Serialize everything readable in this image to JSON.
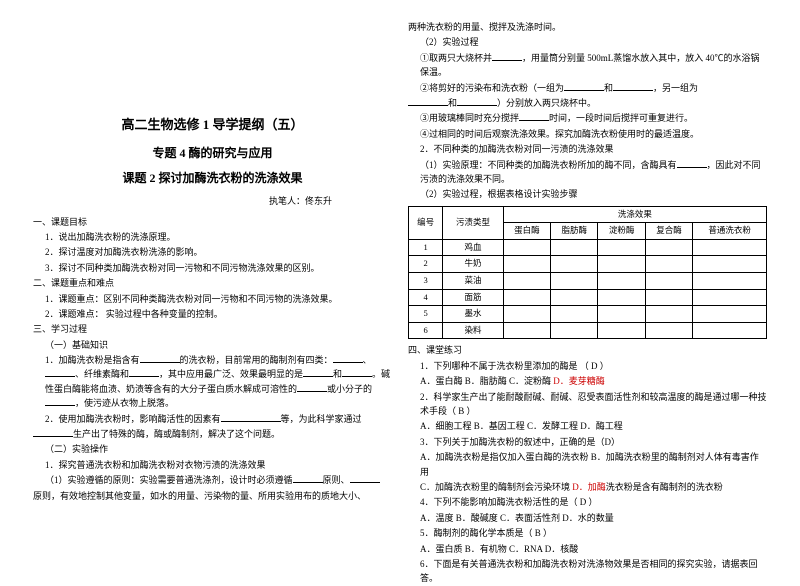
{
  "left": {
    "title_main": "高二生物选修 1 导学提纲（五）",
    "title_sub": "专题 4 酶的研究与应用",
    "title_lesson": "课题 2 探讨加酶洗衣粉的洗涤效果",
    "author": "执笔人：佟东升",
    "s1_head": "一、课题目标",
    "s1_1": "1．说出加酶洗衣粉的洗涤原理。",
    "s1_2": "2．探讨温度对加酶洗衣粉洗涤的影响。",
    "s1_3": "3．探讨不同种类加酶洗衣粉对同一污物和不同污物洗涤效果的区别。",
    "s2_head": "二、课题重点和难点",
    "s2_1": "1．课题重点：区别不同种类酶洗衣粉对同一污物和不同污物的洗涤效果。",
    "s2_2": "2．课题难点：  实验过程中各种变量的控制。",
    "s3_head": "三、学习过程",
    "s3_1": "（一）基础知识",
    "s3_1_1a": "1．加酶洗衣粉是指含有",
    "s3_1_1b": "的洗衣粉，目前常用的酶制剂有四类：",
    "s3_1_1c": "、",
    "s3_1_1d": "、纤维素酶和",
    "s3_1_1e": "，其中应用最广泛、效果最明显的是",
    "s3_1_1f": "和",
    "s3_1_1g": "。碱性蛋白酶能将",
    "s3_1_1h": "血渍、奶渍等含有的大分子蛋白质水解成可溶性的",
    "s3_1_1i": "或小分子的",
    "s3_1_1j": "，使污迹从衣物上脱落。",
    "s3_1_2a": "2．使用加酶洗衣粉时，影响酶活性的因素有",
    "s3_1_2b": "等，为此科学家通过",
    "s3_1_2c": "生产出了特殊的酶，酶或酶制剂，解决了这个问题。",
    "s3_2": "（二）实验操作",
    "s3_2_1": "1．探究普通洗衣粉和加酶洗衣粉对衣物污渍的洗涤效果",
    "s3_2_1a": "（1）实验遵循的原则：实验需要普通洗涤剂，设计时必须遵循",
    "s3_2_1b": "原则、",
    "s3_2_1c": "原则，有效地控制其他变量，如水的用量、污染物的量、所用实验用布的质地大小、"
  },
  "right": {
    "r1": "两种洗衣粉的用量、搅拌及洗涤时间。",
    "r2": "（2）实验过程",
    "r2_1a": "①取两只大烧杯并",
    "r2_1b": "，用量筒分别量 500mL蒸馏水放入其中，放入 40℃的水浴锅保温。",
    "r2_2a": "②将剪好的污染布和洗衣粉（一组为",
    "r2_2b": "和",
    "r2_2c": "，另一组为",
    "r2_2d": "和",
    "r2_2e": "）分别放入两只烧杯中。",
    "r2_3a": "③用玻璃棒同时充分搅拌",
    "r2_3b": "时间，一段时间后搅拌可重复进行。",
    "r2_4": "④过相同的时间后观察洗涤效果。探究加酶洗衣粉使用时的最适温度。",
    "r3": "2．不同种类的加酶洗衣粉对同一污渍的洗涤效果",
    "r4": "（1）实验原理：不同种类的加酶洗衣粉所加的酶不同，含酶具有",
    "r4b": "，因此对不同污渍的洗涤效果不同。",
    "r5": "（2）实验过程，根据表格设计实验步骤",
    "table": {
      "head1": "编号",
      "head2": "污渍类型",
      "head3": "洗涤效果",
      "cols": [
        "蛋白酶",
        "脂肪酶",
        "淀粉酶",
        "复合酶",
        "普通洗衣粉"
      ],
      "rows": [
        "鸡血",
        "牛奶",
        "菜油",
        "面筋",
        "墨水",
        "染料"
      ]
    },
    "s4_head": "四、课堂练习",
    "q1_a": "1．下列哪种不属于洗衣粉里添加的酶是 （",
    "q1_ans": "D",
    "q1_b": "）",
    "q1_opts": "A．蛋白酶    B．脂肪酶    C．淀粉酶    ",
    "q1_d": "D．麦芽糖酶",
    "q2_a": "2．科学家生产出了能耐酸耐碱、耐碱、忍受表面活性剂和较高温度的酶是通过哪一种技术手段（",
    "q2_ans": "B",
    "q2_b": "）",
    "q2_opts": "A．细胞工程   B．基因工程    C．发酵工程    D．酶工程",
    "q3_a": "3．下列关于加酶洗衣粉的叙述中，正确的是（D）",
    "q3_opts_a": "A．加酶洗衣粉是指仅加入蛋白酶的洗衣粉  B．加酶洗衣粉里的酶制剂对人体有毒害作用",
    "q3_opts_c": "C．加酶洗衣粉里的酶制剂会污染环境      ",
    "q3_opts_d": "D．加酶",
    "q3_opts_d2": "洗衣粉是含有酶制剂的洗衣粉",
    "q4_a": "4．下列不能影响加酶洗衣粉活性的是（",
    "q4_ans": "D",
    "q4_b": "）",
    "q4_opts": "A．温度    B．酸碱度    C．表面活性剂    D．水的数量",
    "q5_a": "5．酶制剂的酶化学本质是（",
    "q5_ans": "B",
    "q5_b": "）",
    "q5_opts": "A．蛋白质    B．有机物    C．RNA    D．核酸",
    "q6": "6．下面是有关普通洗衣粉和加酶洗衣粉对洗涤物效果是否相同的探究实验，请据表回答。"
  }
}
